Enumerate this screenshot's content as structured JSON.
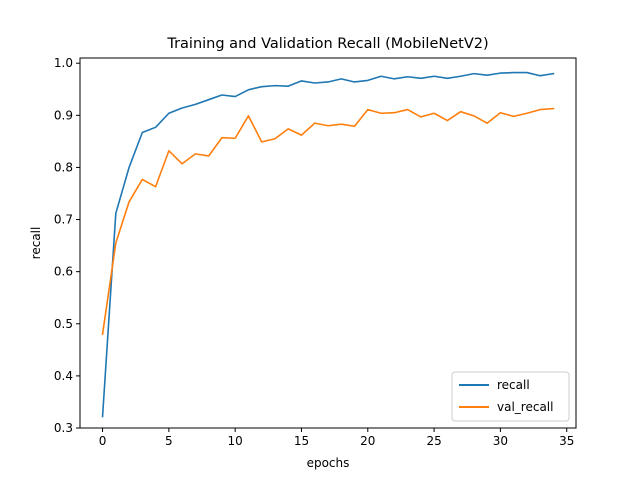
{
  "chart_data": {
    "type": "line",
    "title": "Training and Validation Recall (MobileNetV2)",
    "xlabel": "epochs",
    "ylabel": "recall",
    "xlim": [
      -1.7,
      35.7
    ],
    "ylim": [
      0.3,
      1.01
    ],
    "xticks": [
      0,
      5,
      10,
      15,
      20,
      25,
      30,
      35
    ],
    "yticks": [
      0.3,
      0.4,
      0.5,
      0.6,
      0.7,
      0.8,
      0.9,
      1.0
    ],
    "legend_position": "bottom-right",
    "grid": false,
    "x": [
      0,
      1,
      2,
      3,
      4,
      5,
      6,
      7,
      8,
      9,
      10,
      11,
      12,
      13,
      14,
      15,
      16,
      17,
      18,
      19,
      20,
      21,
      22,
      23,
      24,
      25,
      26,
      27,
      28,
      29,
      30,
      31,
      32,
      33,
      34
    ],
    "series": [
      {
        "name": "recall",
        "color": "#1f77b4",
        "values": [
          0.322,
          0.712,
          0.8,
          0.867,
          0.877,
          0.904,
          0.914,
          0.921,
          0.93,
          0.939,
          0.936,
          0.949,
          0.955,
          0.957,
          0.956,
          0.966,
          0.962,
          0.964,
          0.97,
          0.964,
          0.967,
          0.975,
          0.97,
          0.974,
          0.971,
          0.975,
          0.971,
          0.975,
          0.98,
          0.977,
          0.981,
          0.982,
          0.982,
          0.976,
          0.98
        ]
      },
      {
        "name": "val_recall",
        "color": "#ff7f0e",
        "values": [
          0.48,
          0.655,
          0.734,
          0.777,
          0.763,
          0.832,
          0.807,
          0.826,
          0.822,
          0.857,
          0.856,
          0.899,
          0.849,
          0.855,
          0.874,
          0.862,
          0.885,
          0.88,
          0.883,
          0.879,
          0.911,
          0.904,
          0.905,
          0.911,
          0.897,
          0.904,
          0.89,
          0.907,
          0.899,
          0.885,
          0.905,
          0.898,
          0.904,
          0.911,
          0.913
        ]
      }
    ]
  }
}
